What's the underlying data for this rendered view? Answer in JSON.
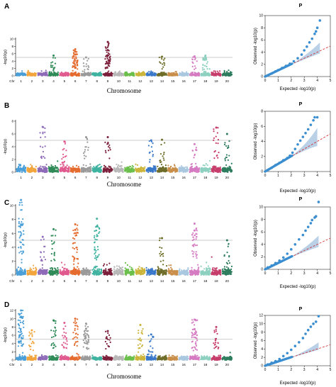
{
  "chart_data": [
    {
      "type": "scatter",
      "panel": "A",
      "subtype": "manhattan",
      "xlabel": "Chromosome",
      "ylabel": "-log10(p)",
      "chr_label": "Chr",
      "chromosomes": [
        "1",
        "2",
        "3",
        "4",
        "5",
        "6",
        "7",
        "8",
        "9",
        "10",
        "11",
        "12",
        "13",
        "14",
        "15",
        "16",
        "17",
        "18",
        "19",
        "20"
      ],
      "ylim": [
        0,
        10
      ],
      "yticks": [
        0,
        2,
        4,
        6,
        8,
        10
      ],
      "threshold": 5,
      "peaks": [
        {
          "chr": 4,
          "y": 5.5
        },
        {
          "chr": 6,
          "y": 7.2
        },
        {
          "chr": 6,
          "y": 6.6
        },
        {
          "chr": 6,
          "y": 5.8
        },
        {
          "chr": 7,
          "y": 5.0
        },
        {
          "chr": 9,
          "y": 9.2
        },
        {
          "chr": 9,
          "y": 7.0
        },
        {
          "chr": 9,
          "y": 5.6
        },
        {
          "chr": 14,
          "y": 5.2
        },
        {
          "chr": 17,
          "y": 5.3
        },
        {
          "chr": 18,
          "y": 5.5
        },
        {
          "chr": 18,
          "y": 5.2
        }
      ]
    },
    {
      "type": "scatter",
      "panel": "B",
      "subtype": "manhattan",
      "xlabel": "Chromosome",
      "ylabel": "-log10(p)",
      "chr_label": "",
      "chromosomes": [
        "1",
        "2",
        "3",
        "4",
        "5",
        "6",
        "7",
        "8",
        "9",
        "10",
        "11",
        "12",
        "13",
        "14",
        "15",
        "16",
        "17",
        "18",
        "19",
        "20"
      ],
      "ylim": [
        0,
        8
      ],
      "yticks": [
        0,
        2,
        4,
        6,
        8
      ],
      "threshold": 5,
      "peaks": [
        {
          "chr": 3,
          "y": 7.1
        },
        {
          "chr": 5,
          "y": 4.8
        },
        {
          "chr": 7,
          "y": 5.5
        },
        {
          "chr": 9,
          "y": 5.5
        },
        {
          "chr": 13,
          "y": 5.0
        },
        {
          "chr": 14,
          "y": 5.1
        },
        {
          "chr": 17,
          "y": 4.4
        },
        {
          "chr": 19,
          "y": 7.0
        },
        {
          "chr": 20,
          "y": 6.0
        }
      ]
    },
    {
      "type": "scatter",
      "panel": "C",
      "subtype": "manhattan",
      "xlabel": "",
      "ylabel": "-log10(p)",
      "chr_label": "Chr",
      "chromosomes": [
        "1",
        "2",
        "3",
        "4",
        "5",
        "6",
        "7",
        "8",
        "9",
        "10",
        "11",
        "12",
        "13",
        "14",
        "15",
        "16",
        "17",
        "18",
        "19",
        "20"
      ],
      "ylim": [
        0,
        10
      ],
      "yticks": [
        0,
        2,
        4,
        6,
        8,
        10
      ],
      "threshold": 5,
      "peaks": [
        {
          "chr": 1,
          "y": 10.8
        },
        {
          "chr": 1,
          "y": 7.3
        },
        {
          "chr": 3,
          "y": 5.5
        },
        {
          "chr": 4,
          "y": 6.6
        },
        {
          "chr": 6,
          "y": 7.3
        },
        {
          "chr": 6,
          "y": 6.5
        },
        {
          "chr": 8,
          "y": 8.1
        },
        {
          "chr": 8,
          "y": 7.0
        },
        {
          "chr": 14,
          "y": 5.3
        },
        {
          "chr": 17,
          "y": 7.4
        },
        {
          "chr": 17,
          "y": 6.4
        },
        {
          "chr": 20,
          "y": 5.0
        }
      ]
    },
    {
      "type": "scatter",
      "panel": "D",
      "subtype": "manhattan",
      "xlabel": "Chromosome",
      "ylabel": "-log10(p)",
      "chr_label": "Chr",
      "chromosomes": [
        "1",
        "2",
        "3",
        "4",
        "5",
        "6",
        "7",
        "8",
        "9",
        "10",
        "11",
        "12",
        "13",
        "14",
        "15",
        "16",
        "17",
        "18",
        "19",
        "20"
      ],
      "ylim": [
        0,
        12
      ],
      "yticks": [
        0,
        2,
        4,
        6,
        8,
        10,
        12
      ],
      "threshold": 5,
      "peaks": [
        {
          "chr": 1,
          "y": 12.0
        },
        {
          "chr": 1,
          "y": 10.5
        },
        {
          "chr": 2,
          "y": 7.2
        },
        {
          "chr": 4,
          "y": 9.6
        },
        {
          "chr": 5,
          "y": 9.0
        },
        {
          "chr": 6,
          "y": 10.0
        },
        {
          "chr": 7,
          "y": 8.8
        },
        {
          "chr": 7,
          "y": 7.6
        },
        {
          "chr": 9,
          "y": 7.0
        },
        {
          "chr": 12,
          "y": 8.5
        },
        {
          "chr": 13,
          "y": 6.2
        },
        {
          "chr": 17,
          "y": 9.8
        },
        {
          "chr": 17,
          "y": 7.5
        },
        {
          "chr": 19,
          "y": 8.0
        }
      ]
    },
    {
      "type": "scatter",
      "panel": "A-qq",
      "subtype": "qq",
      "title": "P",
      "xlabel": "Expected -log10(p)",
      "ylabel": "Observed -log10(p)",
      "xlim": [
        0,
        5
      ],
      "ylim": [
        0,
        10
      ],
      "xticks": [
        0,
        1,
        2,
        3,
        4,
        5
      ],
      "yticks": [
        0,
        2,
        4,
        6,
        8,
        10
      ],
      "points": [
        [
          0.2,
          0.2
        ],
        [
          0.5,
          0.5
        ],
        [
          0.8,
          0.85
        ],
        [
          1.0,
          1.05
        ],
        [
          1.3,
          1.4
        ],
        [
          1.6,
          1.75
        ],
        [
          1.9,
          2.1
        ],
        [
          2.2,
          2.5
        ],
        [
          2.5,
          3.0
        ],
        [
          2.8,
          3.6
        ],
        [
          3.0,
          4.3
        ],
        [
          3.2,
          4.9
        ],
        [
          3.4,
          5.6
        ],
        [
          3.6,
          6.2
        ],
        [
          3.8,
          7.0
        ],
        [
          3.9,
          7.4
        ],
        [
          4.0,
          8.0
        ],
        [
          4.2,
          9.2
        ]
      ],
      "ci_upper_end": [
        4.2,
        5.6
      ],
      "ci_lower_end": [
        4.2,
        3.8
      ]
    },
    {
      "type": "scatter",
      "panel": "B-qq",
      "subtype": "qq",
      "title": "P",
      "xlabel": "Expected -log10(p)",
      "ylabel": "Observed -log10(p)",
      "xlim": [
        0,
        5
      ],
      "ylim": [
        0,
        8
      ],
      "xticks": [
        0,
        1,
        2,
        3,
        4,
        5
      ],
      "yticks": [
        0,
        2,
        4,
        6,
        8
      ],
      "points": [
        [
          0.2,
          0.2
        ],
        [
          0.5,
          0.5
        ],
        [
          0.8,
          0.85
        ],
        [
          1.1,
          1.15
        ],
        [
          1.4,
          1.5
        ],
        [
          1.7,
          1.8
        ],
        [
          1.9,
          2.1
        ],
        [
          2.1,
          2.5
        ],
        [
          2.3,
          3.0
        ],
        [
          2.5,
          3.6
        ],
        [
          2.7,
          4.1
        ],
        [
          2.9,
          4.6
        ],
        [
          3.1,
          5.1
        ],
        [
          3.3,
          5.6
        ],
        [
          3.5,
          6.2
        ],
        [
          3.7,
          6.8
        ],
        [
          3.8,
          7.2
        ],
        [
          4.0,
          7.2
        ]
      ],
      "ci_upper_end": [
        4.0,
        5.8
      ],
      "ci_lower_end": [
        4.0,
        3.4
      ]
    },
    {
      "type": "scatter",
      "panel": "C-qq",
      "subtype": "qq",
      "title": "P",
      "xlabel": "Expected -log10(p)",
      "ylabel": "Observed -log10(p)",
      "xlim": [
        0,
        5
      ],
      "ylim": [
        0,
        10
      ],
      "xticks": [
        0,
        1,
        2,
        3,
        4,
        5
      ],
      "yticks": [
        0,
        2,
        4,
        6,
        8,
        10
      ],
      "points": [
        [
          0.2,
          0.3
        ],
        [
          0.5,
          0.6
        ],
        [
          0.8,
          1.0
        ],
        [
          1.1,
          1.4
        ],
        [
          1.4,
          1.9
        ],
        [
          1.7,
          2.5
        ],
        [
          2.0,
          3.2
        ],
        [
          2.3,
          4.0
        ],
        [
          2.6,
          4.8
        ],
        [
          2.9,
          5.5
        ],
        [
          3.1,
          6.2
        ],
        [
          3.3,
          6.8
        ],
        [
          3.5,
          7.4
        ],
        [
          3.6,
          7.9
        ],
        [
          3.8,
          8.3
        ],
        [
          3.9,
          8.5
        ],
        [
          4.1,
          10.8
        ]
      ],
      "ci_upper_end": [
        4.1,
        5.4
      ],
      "ci_lower_end": [
        4.1,
        3.6
      ]
    },
    {
      "type": "scatter",
      "panel": "D-qq",
      "subtype": "qq",
      "title": "P",
      "xlabel": "Expected -log10(p)",
      "ylabel": "Observed -log10(p)",
      "xlim": [
        0,
        5
      ],
      "ylim": [
        0,
        12
      ],
      "xticks": [
        0,
        1,
        2,
        3,
        4,
        5
      ],
      "yticks": [
        0,
        2,
        4,
        6,
        8,
        10,
        12
      ],
      "points": [
        [
          0.2,
          0.3
        ],
        [
          0.5,
          0.7
        ],
        [
          0.8,
          1.1
        ],
        [
          1.1,
          1.6
        ],
        [
          1.4,
          2.3
        ],
        [
          1.7,
          3.0
        ],
        [
          2.0,
          3.8
        ],
        [
          2.3,
          4.7
        ],
        [
          2.6,
          5.6
        ],
        [
          2.9,
          6.6
        ],
        [
          3.1,
          7.6
        ],
        [
          3.3,
          8.5
        ],
        [
          3.5,
          9.3
        ],
        [
          3.7,
          10.0
        ],
        [
          3.9,
          10.5
        ],
        [
          4.1,
          11.8
        ]
      ],
      "ci_upper_end": [
        4.1,
        5.6
      ],
      "ci_lower_end": [
        4.1,
        3.8
      ]
    }
  ]
}
